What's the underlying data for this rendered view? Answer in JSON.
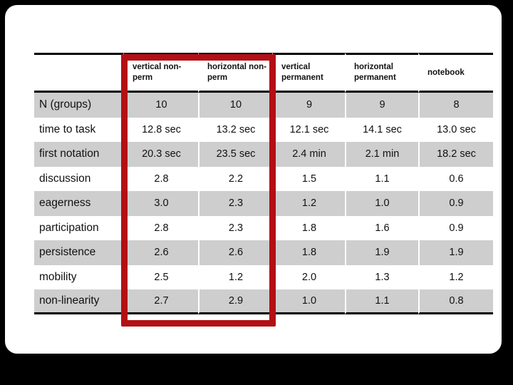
{
  "slide": {
    "background_color": "#000000",
    "surface_color": "#ffffff"
  },
  "table": {
    "stripe_color": "#cecece",
    "rule_color": "#000000",
    "header": {
      "row_label_column": "",
      "columns": [
        "vertical non-perm",
        "horizontal non-perm",
        "vertical permanent",
        "horizontal permanent",
        "notebook"
      ]
    },
    "rows": [
      {
        "label": "N (groups)",
        "values": [
          "10",
          "10",
          "9",
          "9",
          "8"
        ]
      },
      {
        "label": "time to task",
        "values": [
          "12.8 sec",
          "13.2 sec",
          "12.1 sec",
          "14.1 sec",
          "13.0 sec"
        ]
      },
      {
        "label": "first notation",
        "values": [
          "20.3 sec",
          "23.5 sec",
          "2.4 min",
          "2.1 min",
          "18.2 sec"
        ]
      },
      {
        "label": "discussion",
        "values": [
          "2.8",
          "2.2",
          "1.5",
          "1.1",
          "0.6"
        ]
      },
      {
        "label": "eagerness",
        "values": [
          "3.0",
          "2.3",
          "1.2",
          "1.0",
          "0.9"
        ]
      },
      {
        "label": "participation",
        "values": [
          "2.8",
          "2.3",
          "1.8",
          "1.6",
          "0.9"
        ]
      },
      {
        "label": "persistence",
        "values": [
          "2.6",
          "2.6",
          "1.8",
          "1.9",
          "1.9"
        ]
      },
      {
        "label": "mobility",
        "values": [
          "2.5",
          "1.2",
          "2.0",
          "1.3",
          "1.2"
        ]
      },
      {
        "label": "non-linearity",
        "values": [
          "2.7",
          "2.9",
          "1.0",
          "1.1",
          "0.8"
        ]
      }
    ],
    "highlight": {
      "color": "#b30f15",
      "highlighted_columns": [
        "vertical non-perm",
        "horizontal non-perm"
      ]
    }
  },
  "chart_data": {
    "type": "table",
    "title": "",
    "columns": [
      "",
      "vertical non-perm",
      "horizontal non-perm",
      "vertical permanent",
      "horizontal permanent",
      "notebook"
    ],
    "rows": [
      [
        "N (groups)",
        "10",
        "10",
        "9",
        "9",
        "8"
      ],
      [
        "time to task",
        "12.8 sec",
        "13.2 sec",
        "12.1 sec",
        "14.1 sec",
        "13.0 sec"
      ],
      [
        "first notation",
        "20.3 sec",
        "23.5 sec",
        "2.4 min",
        "2.1 min",
        "18.2 sec"
      ],
      [
        "discussion",
        "2.8",
        "2.2",
        "1.5",
        "1.1",
        "0.6"
      ],
      [
        "eagerness",
        "3.0",
        "2.3",
        "1.2",
        "1.0",
        "0.9"
      ],
      [
        "participation",
        "2.8",
        "2.3",
        "1.8",
        "1.6",
        "0.9"
      ],
      [
        "persistence",
        "2.6",
        "2.6",
        "1.8",
        "1.9",
        "1.9"
      ],
      [
        "mobility",
        "2.5",
        "1.2",
        "2.0",
        "1.3",
        "1.2"
      ],
      [
        "non-linearity",
        "2.7",
        "2.9",
        "1.0",
        "1.1",
        "0.8"
      ]
    ],
    "layout_hints": {
      "striped_rows": "odd rows gray",
      "highlight_box_around_columns": [
        1,
        2
      ]
    }
  }
}
